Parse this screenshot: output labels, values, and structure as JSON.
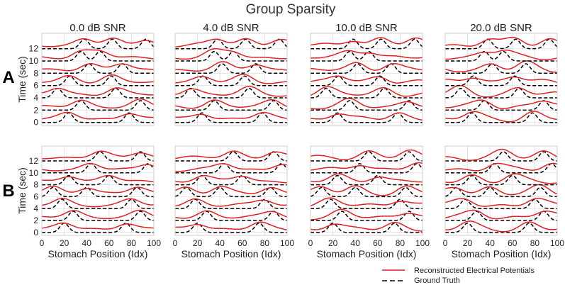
{
  "chart_data": {
    "type": "line",
    "title": "Group Sparsity",
    "columns": [
      "0.0 dB SNR",
      "4.0 dB SNR",
      "10.0 dB SNR",
      "20.0 dB SNR"
    ],
    "rows": [
      "A",
      "B"
    ],
    "xlabel": "Stomach Position (Idx)",
    "ylabel": "Time (sec)",
    "xlim": [
      0,
      100
    ],
    "ylim": [
      -0.5,
      14.5
    ],
    "x_ticks": [
      0,
      20,
      40,
      60,
      80,
      100
    ],
    "y_ticks": [
      0,
      2,
      4,
      6,
      8,
      10,
      12
    ],
    "grid": true,
    "legend_position": "bottom-right",
    "series": [
      {
        "name": "Reconstructed Electrical Potentials",
        "color": "#e02020",
        "style": "solid"
      },
      {
        "name": "Ground Truth",
        "color": "#000000",
        "style": "dashed"
      }
    ],
    "traces": {
      "offsets": [
        0,
        2,
        4,
        6,
        8,
        10,
        12
      ],
      "A_ground_truth_peaks": [
        {
          "t": 0,
          "peaks": [
            24,
            78
          ]
        },
        {
          "t": 2,
          "peaks": [
            35,
            88
          ]
        },
        {
          "t": 4,
          "peaks": [
            14,
            66
          ]
        },
        {
          "t": 6,
          "peaks": [
            25,
            62
          ]
        },
        {
          "t": 8,
          "peaks": [
            42,
            72
          ]
        },
        {
          "t": 10,
          "peaks": [
            35,
            52
          ]
        },
        {
          "t": 12,
          "peaks": [
            38,
            63,
            93
          ]
        }
      ],
      "B_ground_truth_peaks": [
        {
          "t": 0,
          "peaks": [
            20,
            75
          ]
        },
        {
          "t": 2,
          "peaks": [
            28,
            88
          ]
        },
        {
          "t": 4,
          "peaks": [
            18,
            80
          ]
        },
        {
          "t": 6,
          "peaks": [
            10,
            40,
            85
          ]
        },
        {
          "t": 8,
          "peaks": [
            24,
            60
          ]
        },
        {
          "t": 10,
          "peaks": [
            44,
            95
          ]
        },
        {
          "t": 12,
          "peaks": [
            52,
            88
          ]
        }
      ]
    }
  }
}
